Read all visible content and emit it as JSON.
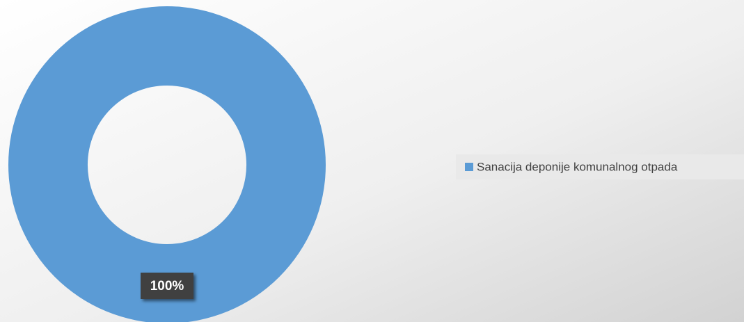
{
  "chart_data": {
    "type": "donut",
    "categories": [
      "Sanacija deponije komunalnog otpada"
    ],
    "values": [
      100
    ],
    "value_labels": [
      "100%"
    ],
    "colors": [
      "#5b9bd5"
    ],
    "legend": "right"
  }
}
